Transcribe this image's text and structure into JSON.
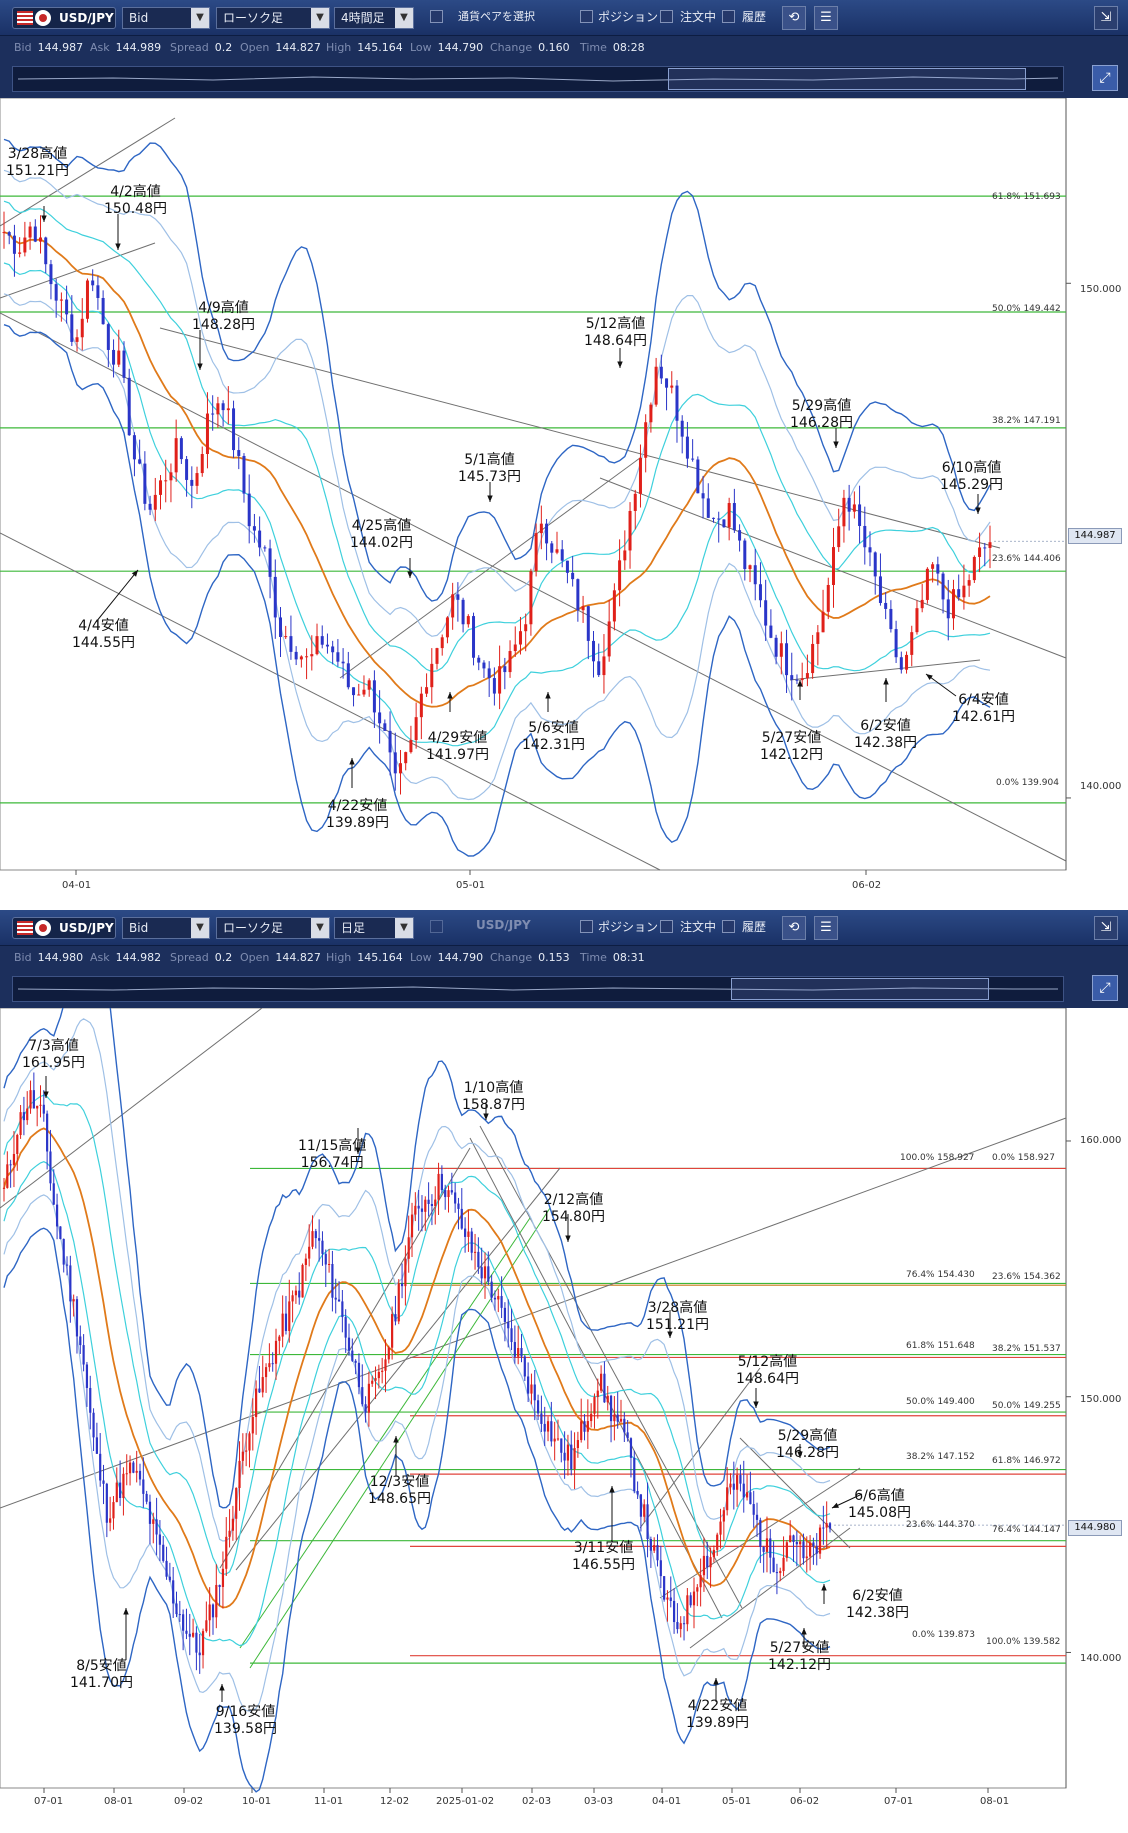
{
  "panels": [
    {
      "toolbar": {
        "symbol": "USD/JPY",
        "price_type": "Bid",
        "chart_type": "ローソク足",
        "timeframe": "4時間足",
        "pair_select_label": "通貨ペアを選択",
        "pair_select_symbol": "",
        "position_label": "ポジション",
        "order_label": "注文中",
        "history_label": "履歴"
      },
      "info": {
        "bid_label": "Bid",
        "bid": "144.987",
        "ask_label": "Ask",
        "ask": "144.989",
        "spread_label": "Spread",
        "spread": "0.2",
        "open_label": "Open",
        "open": "144.827",
        "high_label": "High",
        "high": "145.164",
        "low_label": "Low",
        "low": "144.790",
        "change_label": "Change",
        "change": "0.160",
        "time_label": "Time",
        "time": "08:28"
      },
      "current_price_tag": "144.987",
      "chart_data": {
        "type": "candlestick",
        "title": "",
        "ylim": [
          138.6,
          153.6
        ],
        "y_ticks": [
          {
            "value": 150.0,
            "label": "150.000"
          },
          {
            "value": 140.0,
            "label": "140.000"
          }
        ],
        "x_ticks": [
          "04-01",
          "05-01",
          "06-02"
        ],
        "fibonacci": [
          {
            "label": "61.8%  151.693",
            "value": 151.693
          },
          {
            "label": "50.0%  149.442",
            "value": 149.442
          },
          {
            "label": "38.2%  147.191",
            "value": 147.191
          },
          {
            "label": "23.6%  144.406",
            "value": 144.406
          },
          {
            "label": "0.0%  139.904",
            "value": 139.904
          }
        ],
        "close_path": [
          151.0,
          150.7,
          151.2,
          150.2,
          149.5,
          148.9,
          150.3,
          149.0,
          148.4,
          146.6,
          145.6,
          146.2,
          146.8,
          146.0,
          147.3,
          147.9,
          146.7,
          145.3,
          144.7,
          143.3,
          143.0,
          142.6,
          143.1,
          142.7,
          142.0,
          142.3,
          141.5,
          140.2,
          140.9,
          142.3,
          143.1,
          143.9,
          143.3,
          142.5,
          142.2,
          142.7,
          143.6,
          145.5,
          144.8,
          144.2,
          143.5,
          142.6,
          143.7,
          145.3,
          146.9,
          148.5,
          147.9,
          147.0,
          146.0,
          145.4,
          145.6,
          144.6,
          143.9,
          143.1,
          142.6,
          142.4,
          143.1,
          144.3,
          146.0,
          145.2,
          144.3,
          143.2,
          142.4,
          143.5,
          144.5,
          143.7,
          143.9,
          144.6,
          145.0
        ],
        "annotations": [
          {
            "label": "3/28高値",
            "price": "151.21円"
          },
          {
            "label": "4/2高値",
            "price": "150.48円"
          },
          {
            "label": "4/9高値",
            "price": "148.28円"
          },
          {
            "label": "4/4安値",
            "price": "144.55円"
          },
          {
            "label": "4/22安値",
            "price": "139.89円"
          },
          {
            "label": "4/25高値",
            "price": "144.02円"
          },
          {
            "label": "4/29安値",
            "price": "141.97円"
          },
          {
            "label": "5/1高値",
            "price": "145.73円"
          },
          {
            "label": "5/6安値",
            "price": "142.31円"
          },
          {
            "label": "5/12高値",
            "price": "148.64円"
          },
          {
            "label": "5/27安値",
            "price": "142.12円"
          },
          {
            "label": "5/29高値",
            "price": "146.28円"
          },
          {
            "label": "6/2安値",
            "price": "142.38円"
          },
          {
            "label": "6/4安値",
            "price": "142.61円"
          },
          {
            "label": "6/10高値",
            "price": "145.29円"
          }
        ]
      }
    },
    {
      "toolbar": {
        "symbol": "USD/JPY",
        "price_type": "Bid",
        "chart_type": "ローソク足",
        "timeframe": "日足",
        "pair_select_label": "",
        "pair_select_symbol": "USD/JPY",
        "position_label": "ポジション",
        "order_label": "注文中",
        "history_label": "履歴"
      },
      "info": {
        "bid_label": "Bid",
        "bid": "144.980",
        "ask_label": "Ask",
        "ask": "144.982",
        "spread_label": "Spread",
        "spread": "0.2",
        "open_label": "Open",
        "open": "144.827",
        "high_label": "High",
        "high": "145.164",
        "low_label": "Low",
        "low": "144.790",
        "change_label": "Change",
        "change": "0.153",
        "time_label": "Time",
        "time": "08:31"
      },
      "current_price_tag": "144.980",
      "chart_data": {
        "type": "candlestick",
        "title": "",
        "ylim": [
          134.7,
          165.2
        ],
        "y_ticks": [
          {
            "value": 160.0,
            "label": "160.000"
          },
          {
            "value": 150.0,
            "label": "150.000"
          },
          {
            "value": 140.0,
            "label": "140.000"
          }
        ],
        "x_ticks": [
          "07-01",
          "08-01",
          "09-02",
          "10-01",
          "11-01",
          "12-02",
          "2025-01-02",
          "02-03",
          "03-03",
          "04-01",
          "05-01",
          "06-02",
          "07-01",
          "08-01"
        ],
        "fibonacci": [
          {
            "label": "100.0%  158.927",
            "value": 158.927,
            "side": "left"
          },
          {
            "label": "0.0%  158.927",
            "value": 158.927,
            "side": "right"
          },
          {
            "label": "76.4%  154.430",
            "value": 154.43,
            "side": "left"
          },
          {
            "label": "23.6%  154.362",
            "value": 154.362,
            "side": "right"
          },
          {
            "label": "61.8%  151.648",
            "value": 151.648,
            "side": "left"
          },
          {
            "label": "38.2%  151.537",
            "value": 151.537,
            "side": "right"
          },
          {
            "label": "50.0%  149.400",
            "value": 149.4,
            "side": "left"
          },
          {
            "label": "50.0%  149.255",
            "value": 149.255,
            "side": "right"
          },
          {
            "label": "38.2%  147.152",
            "value": 147.152,
            "side": "left"
          },
          {
            "label": "61.8%  146.972",
            "value": 146.972,
            "side": "right"
          },
          {
            "label": "23.6%  144.370",
            "value": 144.37,
            "side": "left"
          },
          {
            "label": "76.4%  144.147",
            "value": 144.147,
            "side": "right"
          },
          {
            "label": "0.0%  139.873",
            "value": 139.873,
            "side": "left"
          },
          {
            "label": "100.0%  139.582",
            "value": 139.582,
            "side": "right"
          }
        ],
        "close_path": [
          158.0,
          160.5,
          161.7,
          160.9,
          157.0,
          154.5,
          152.0,
          148.0,
          145.5,
          146.5,
          147.2,
          145.8,
          144.0,
          142.3,
          141.0,
          140.0,
          141.5,
          143.5,
          146.5,
          149.0,
          150.5,
          152.0,
          153.2,
          154.5,
          156.5,
          155.0,
          153.5,
          151.5,
          149.8,
          150.5,
          152.5,
          155.3,
          157.5,
          157.8,
          158.5,
          157.3,
          156.0,
          155.0,
          154.0,
          152.4,
          151.5,
          150.0,
          149.0,
          148.0,
          147.5,
          149.0,
          150.7,
          149.5,
          148.5,
          146.5,
          144.5,
          142.5,
          141.0,
          141.8,
          143.5,
          144.0,
          146.3,
          146.5,
          145.5,
          144.0,
          143.5,
          144.8,
          143.5,
          144.2,
          145.0
        ],
        "annotations": [
          {
            "label": "7/3高値",
            "price": "161.95円"
          },
          {
            "label": "8/5安値",
            "price": "141.70円"
          },
          {
            "label": "9/16安値",
            "price": "139.58円"
          },
          {
            "label": "11/15高値",
            "price": "156.74円"
          },
          {
            "label": "12/3安値",
            "price": "148.65円"
          },
          {
            "label": "1/10高値",
            "price": "158.87円"
          },
          {
            "label": "2/12高値",
            "price": "154.80円"
          },
          {
            "label": "3/11安値",
            "price": "146.55円"
          },
          {
            "label": "3/28高値",
            "price": "151.21円"
          },
          {
            "label": "4/22安値",
            "price": "139.89円"
          },
          {
            "label": "5/12高値",
            "price": "148.64円"
          },
          {
            "label": "5/27安値",
            "price": "142.12円"
          },
          {
            "label": "5/29高値",
            "price": "146.28円"
          },
          {
            "label": "6/2安値",
            "price": "142.38円"
          },
          {
            "label": "6/6高値",
            "price": "145.08円"
          }
        ]
      }
    }
  ],
  "colors": {
    "toolbar_bg": "#1c2f5c",
    "fib_green": "#3db83a",
    "fib_red": "#e0443c",
    "fib_orange": "#c8781a",
    "bullish": "#e0201a",
    "bearish": "#2a35c8",
    "ma_orange": "#e07a1a",
    "band_blue": "#2e66c4",
    "band_light": "#9fc0e6",
    "band_cyan": "#3ed0dc",
    "trendline": "#707070"
  }
}
